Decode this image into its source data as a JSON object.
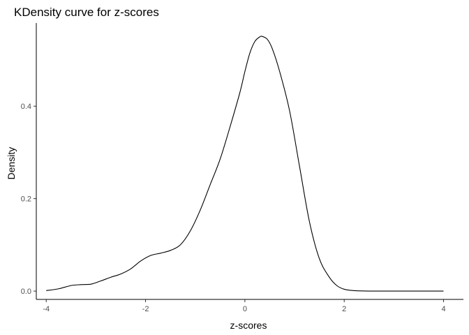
{
  "chart_data": {
    "type": "line",
    "title": "KDensity curve for z-scores",
    "xlabel": "z-scores",
    "ylabel": "Density",
    "xlim": [
      -4.2,
      4.4
    ],
    "ylim": [
      -0.018,
      0.58
    ],
    "x_ticks": [
      -4,
      -2,
      0,
      2,
      4
    ],
    "x_tick_labels": [
      "-4",
      "-2",
      "0",
      "2",
      "4"
    ],
    "y_ticks": [
      0.0,
      0.2,
      0.4
    ],
    "y_tick_labels": [
      "0.0",
      "0.2",
      "0.4"
    ],
    "grid": false,
    "legend": "none",
    "series": [
      {
        "color": "#000000",
        "x": [
          -4.0,
          -3.75,
          -3.5,
          -3.3,
          -3.1,
          -2.9,
          -2.7,
          -2.5,
          -2.3,
          -2.1,
          -1.9,
          -1.7,
          -1.5,
          -1.3,
          -1.1,
          -0.9,
          -0.7,
          -0.5,
          -0.3,
          -0.1,
          0.0,
          0.1,
          0.2,
          0.3,
          0.35,
          0.45,
          0.55,
          0.7,
          0.9,
          1.1,
          1.3,
          1.5,
          1.7,
          1.85,
          2.0,
          2.2,
          2.5,
          3.0,
          3.5,
          4.0
        ],
        "y": [
          0.001,
          0.005,
          0.012,
          0.014,
          0.015,
          0.022,
          0.03,
          0.037,
          0.048,
          0.065,
          0.077,
          0.082,
          0.088,
          0.1,
          0.13,
          0.175,
          0.23,
          0.285,
          0.355,
          0.43,
          0.475,
          0.515,
          0.54,
          0.55,
          0.551,
          0.545,
          0.525,
          0.475,
          0.39,
          0.27,
          0.15,
          0.07,
          0.03,
          0.012,
          0.004,
          0.001,
          0.0,
          0.0,
          0.0,
          0.0
        ]
      }
    ]
  }
}
